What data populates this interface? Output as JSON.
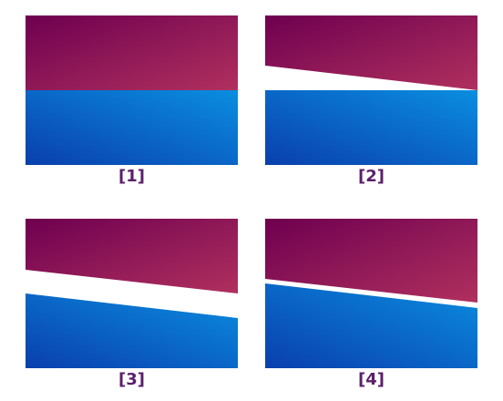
{
  "colors": {
    "top_dark": "#6e0050",
    "top_light": "#b0305e",
    "bottom_dark": "#0a3fae",
    "bottom_light": "#0a8ee0",
    "label": "#5b1f6b"
  },
  "panels": [
    {
      "label": "[1]"
    },
    {
      "label": "[2]"
    },
    {
      "label": "[3]"
    },
    {
      "label": "[4]"
    }
  ]
}
